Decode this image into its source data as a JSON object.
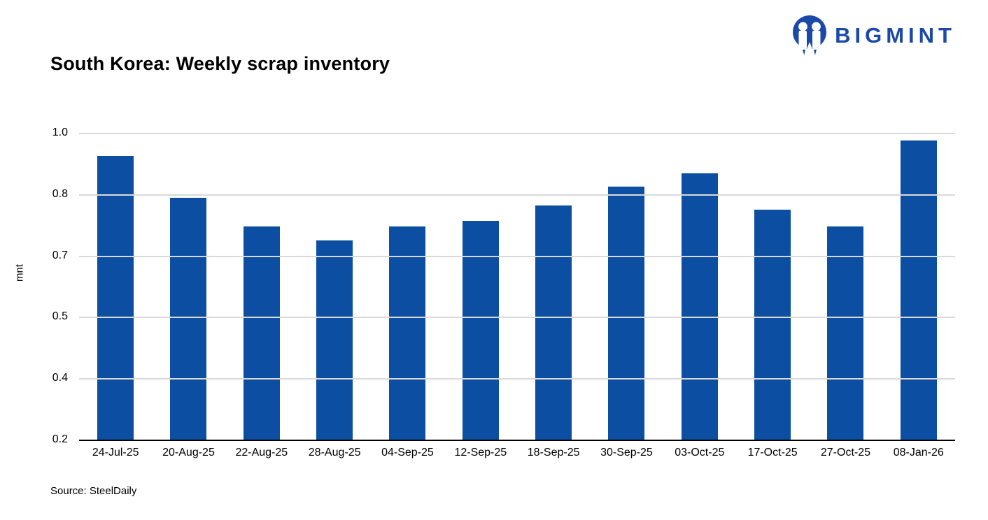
{
  "header": {
    "title": "South Korea: Weekly scrap inventory",
    "brand": "BIGMINT"
  },
  "source_note": "Source: SteelDaily",
  "colors": {
    "bar": "#0b4ea2",
    "brand_blue": "#1b49a8",
    "gridline": "#d9d9d9",
    "axis_line": "#000000"
  },
  "chart_data": {
    "type": "bar",
    "title": "South Korea: Weekly scrap inventory",
    "xlabel": "",
    "ylabel": "mnt",
    "ylim": [
      0.2,
      1.0
    ],
    "grid": "horizontal",
    "legend": "none",
    "categories": [
      "24-Jul-25",
      "20-Aug-25",
      "22-Aug-25",
      "28-Aug-25",
      "04-Sep-25",
      "12-Sep-25",
      "18-Sep-25",
      "30-Sep-25",
      "03-Oct-25",
      "17-Oct-25",
      "27-Oct-25",
      "08-Jan-26"
    ],
    "values": [
      0.94,
      0.83,
      0.755,
      0.72,
      0.755,
      0.77,
      0.81,
      0.86,
      0.895,
      0.8,
      0.755,
      0.98
    ],
    "yticks": [
      {
        "value": 0.2,
        "label": "0.2"
      },
      {
        "value": 0.36,
        "label": "0.4"
      },
      {
        "value": 0.52,
        "label": "0.5"
      },
      {
        "value": 0.68,
        "label": "0.7"
      },
      {
        "value": 0.84,
        "label": "0.8"
      },
      {
        "value": 1.0,
        "label": "1.0"
      }
    ]
  }
}
